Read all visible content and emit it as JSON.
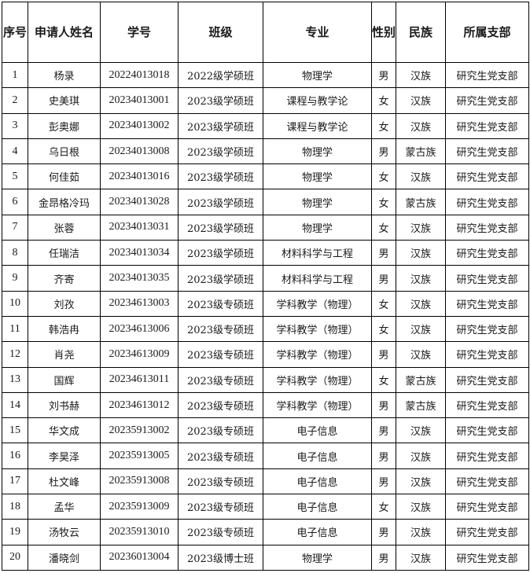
{
  "headers": [
    "序号",
    "申请人姓名",
    "学号",
    "班级",
    "专业",
    "性别",
    "民族",
    "所属支部"
  ],
  "rows": [
    [
      "1",
      "杨录",
      "20224013018",
      "2022级学硕班",
      "物理学",
      "男",
      "汉族",
      "研究生党支部"
    ],
    [
      "2",
      "史美琪",
      "20234013001",
      "2023级学硕班",
      "课程与教学论",
      "女",
      "汉族",
      "研究生党支部"
    ],
    [
      "3",
      "彭奥娜",
      "20234013002",
      "2023级学硕班",
      "课程与教学论",
      "女",
      "汉族",
      "研究生党支部"
    ],
    [
      "4",
      "乌日根",
      "20234013008",
      "2023级学硕班",
      "物理学",
      "男",
      "蒙古族",
      "研究生党支部"
    ],
    [
      "5",
      "何佳茹",
      "20234013016",
      "2023级学硕班",
      "物理学",
      "女",
      "汉族",
      "研究生党支部"
    ],
    [
      "6",
      "金昂格冷玛",
      "20234013028",
      "2023级学硕班",
      "物理学",
      "女",
      "蒙古族",
      "研究生党支部"
    ],
    [
      "7",
      "张蓉",
      "20234013031",
      "2023级学硕班",
      "物理学",
      "女",
      "汉族",
      "研究生党支部"
    ],
    [
      "8",
      "任瑞洁",
      "20234013034",
      "2023级学硕班",
      "材料科学与工程",
      "男",
      "汉族",
      "研究生党支部"
    ],
    [
      "9",
      "齐寄",
      "20234013035",
      "2023级学硕班",
      "材料科学与工程",
      "男",
      "汉族",
      "研究生党支部"
    ],
    [
      "10",
      "刘孜",
      "20234613003",
      "2023级专硕班",
      "学科教学（物理）",
      "女",
      "汉族",
      "研究生党支部"
    ],
    [
      "11",
      "韩浩冉",
      "20234613006",
      "2023级专硕班",
      "学科教学（物理）",
      "女",
      "汉族",
      "研究生党支部"
    ],
    [
      "12",
      "肖尧",
      "20234613009",
      "2023级专硕班",
      "学科教学（物理）",
      "男",
      "汉族",
      "研究生党支部"
    ],
    [
      "13",
      "国辉",
      "20234613011",
      "2023级专硕班",
      "学科教学（物理）",
      "女",
      "蒙古族",
      "研究生党支部"
    ],
    [
      "14",
      "刘书赫",
      "20234613012",
      "2023级专硕班",
      "学科教学（物理）",
      "男",
      "蒙古族",
      "研究生党支部"
    ],
    [
      "15",
      "华文成",
      "20235913002",
      "2023级专硕班",
      "电子信息",
      "男",
      "汉族",
      "研究生党支部"
    ],
    [
      "16",
      "李昊泽",
      "20235913005",
      "2023级专硕班",
      "电子信息",
      "男",
      "汉族",
      "研究生党支部"
    ],
    [
      "17",
      "杜文峰",
      "20235913008",
      "2023级专硕班",
      "电子信息",
      "男",
      "汉族",
      "研究生党支部"
    ],
    [
      "18",
      "孟华",
      "20235913009",
      "2023级专硕班",
      "电子信息",
      "女",
      "汉族",
      "研究生党支部"
    ],
    [
      "19",
      "汤牧云",
      "20235913010",
      "2023级专硕班",
      "电子信息",
      "男",
      "汉族",
      "研究生党支部"
    ],
    [
      "20",
      "潘晓剑",
      "20236013004",
      "2023级博士班",
      "物理学",
      "男",
      "汉族",
      "研究生党支部"
    ]
  ]
}
